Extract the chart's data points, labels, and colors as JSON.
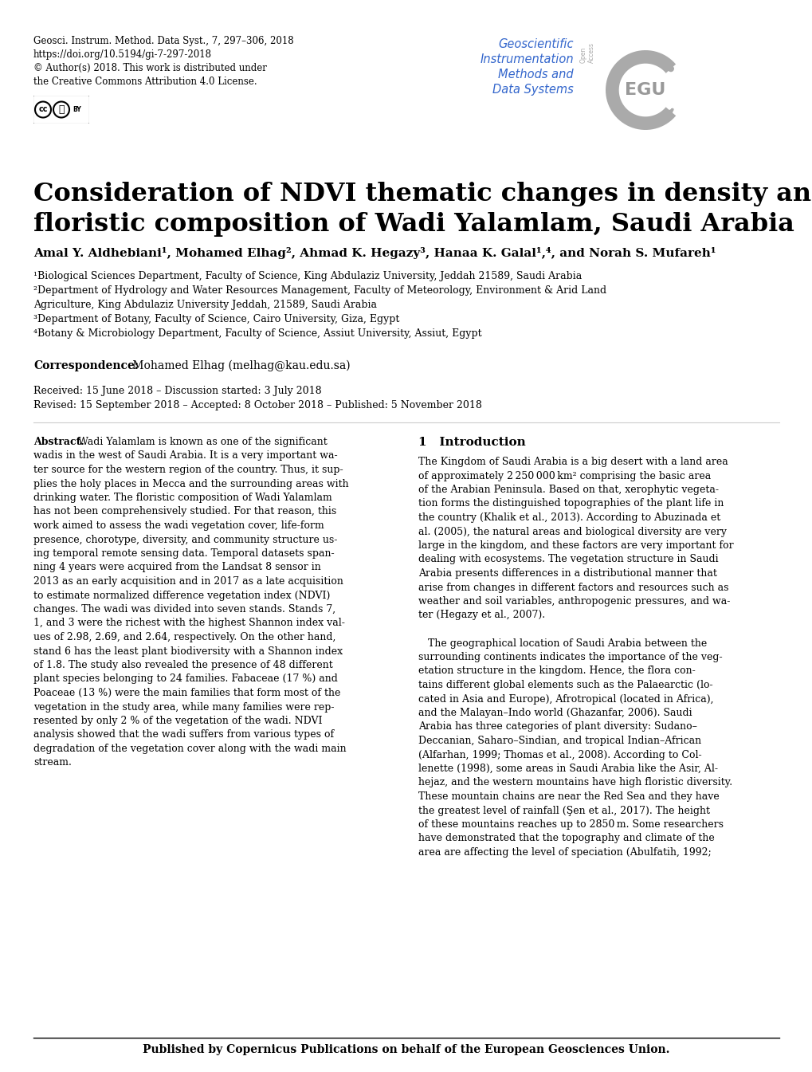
{
  "journal_line1": "Geosci. Instrum. Method. Data Syst., 7, 297–306, 2018",
  "journal_line2": "https://doi.org/10.5194/gi-7-297-2018",
  "journal_line3": "© Author(s) 2018. This work is distributed under",
  "journal_line4": "the Creative Commons Attribution 4.0 License.",
  "journal_name_line1": "Geoscientific",
  "journal_name_line2": "Instrumentation",
  "journal_name_line3": "Methods and",
  "journal_name_line4": "Data Systems",
  "open_access_text": "Open Access",
  "title_line1": "Consideration of NDVI thematic changes in density analysis and",
  "title_line2": "floristic composition of Wadi Yalamlam, Saudi Arabia",
  "authors_parts": [
    {
      "text": "Amal Y. Aldhebiani",
      "super": "1"
    },
    {
      "text": ", Mohamed Elhag",
      "super": "2"
    },
    {
      "text": ", Ahmad K. Hegazy",
      "super": "3"
    },
    {
      "text": ", Hanaa K. Galal",
      "super": "1,4"
    },
    {
      "text": ", and Norah S. Mufareh",
      "super": "1"
    }
  ],
  "affil1": "¹Biological Sciences Department, Faculty of Science, King Abdulaziz University, Jeddah 21589, Saudi Arabia",
  "affil2": "²Department of Hydrology and Water Resources Management, Faculty of Meteorology, Environment & Arid Land",
  "affil2b": "Agriculture, King Abdulaziz University Jeddah, 21589, Saudi Arabia",
  "affil3": "³Department of Botany, Faculty of Science, Cairo University, Giza, Egypt",
  "affil4": "⁴Botany & Microbiology Department, Faculty of Science, Assiut University, Assiut, Egypt",
  "correspondence_bold": "Correspondence:",
  "correspondence_rest": " Mohamed Elhag (melhag@kau.edu.sa)",
  "received": "Received: 15 June 2018 – Discussion started: 3 July 2018",
  "revised": "Revised: 15 September 2018 – Accepted: 8 October 2018 – Published: 5 November 2018",
  "abstract_bold": "Abstract.",
  "abstract_lines": [
    " Wadi Yalamlam is known as one of the significant",
    "wadis in the west of Saudi Arabia. It is a very important wa-",
    "ter source for the western region of the country. Thus, it sup-",
    "plies the holy places in Mecca and the surrounding areas with",
    "drinking water. The floristic composition of Wadi Yalamlam",
    "has not been comprehensively studied. For that reason, this",
    "work aimed to assess the wadi vegetation cover, life-form",
    "presence, chorotype, diversity, and community structure us-",
    "ing temporal remote sensing data. Temporal datasets span-",
    "ning 4 years were acquired from the Landsat 8 sensor in",
    "2013 as an early acquisition and in 2017 as a late acquisition",
    "to estimate normalized difference vegetation index (NDVI)",
    "changes. The wadi was divided into seven stands. Stands 7,",
    "1, and 3 were the richest with the highest Shannon index val-",
    "ues of 2.98, 2.69, and 2.64, respectively. On the other hand,",
    "stand 6 has the least plant biodiversity with a Shannon index",
    "of 1.8. The study also revealed the presence of 48 different",
    "plant species belonging to 24 families. Fabaceae (17 %) and",
    "Poaceae (13 %) were the main families that form most of the",
    "vegetation in the study area, while many families were rep-",
    "resented by only 2 % of the vegetation of the wadi. NDVI",
    "analysis showed that the wadi suffers from various types of",
    "degradation of the vegetation cover along with the wadi main",
    "stream."
  ],
  "intro_header": "1   Introduction",
  "intro_lines": [
    "The Kingdom of Saudi Arabia is a big desert with a land area",
    "of approximately 2 250 000 km² comprising the basic area",
    "of the Arabian Peninsula. Based on that, xerophytic vegeta-",
    "tion forms the distinguished topographies of the plant life in",
    "the country (Khalik et al., 2013). According to Abuzinada et",
    "al. (2005), the natural areas and biological diversity are very",
    "large in the kingdom, and these factors are very important for",
    "dealing with ecosystems. The vegetation structure in Saudi",
    "Arabia presents differences in a distributional manner that",
    "arise from changes in different factors and resources such as",
    "weather and soil variables, anthropogenic pressures, and wa-",
    "ter (Hegazy et al., 2007).",
    "",
    "   The geographical location of Saudi Arabia between the",
    "surrounding continents indicates the importance of the veg-",
    "etation structure in the kingdom. Hence, the flora con-",
    "tains different global elements such as the Palaearctic (lo-",
    "cated in Asia and Europe), Afrotropical (located in Africa),",
    "and the Malayan–Indo world (Ghazanfar, 2006). Saudi",
    "Arabia has three categories of plant diversity: Sudano–",
    "Deccanian, Saharo–Sindian, and tropical Indian–African",
    "(Alfarhan, 1999; Thomas et al., 2008). According to Col-",
    "lenette (1998), some areas in Saudi Arabia like the Asir, Al-",
    "hejaz, and the western mountains have high floristic diversity.",
    "These mountain chains are near the Red Sea and they have",
    "the greatest level of rainfall (Şen et al., 2017). The height",
    "of these mountains reaches up to 2850 m. Some researchers",
    "have demonstrated that the topography and climate of the",
    "area are affecting the level of speciation (Abulfatih, 1992;"
  ],
  "footer": "Published by Copernicus Publications on behalf of the European Geosciences Union.",
  "bg_color": "#ffffff",
  "text_color": "#000000",
  "journal_blue": "#3366cc",
  "egu_gray": "#999999"
}
